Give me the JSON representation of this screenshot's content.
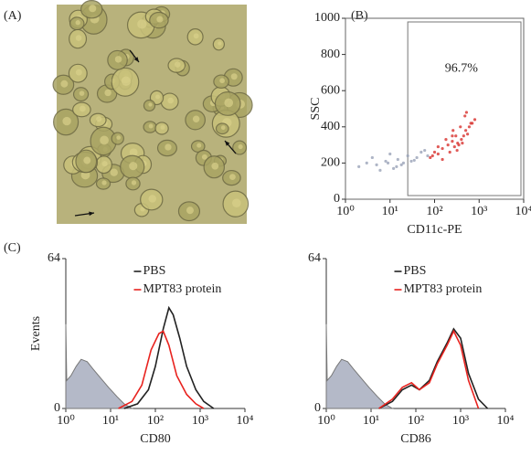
{
  "panel_labels": [
    "(A)",
    "(B)",
    "(C)"
  ],
  "chart_data": [
    {
      "type": "scatter",
      "x_label": "CD11c-PE",
      "y_label": "SSC",
      "annotation": "96.7%",
      "xscale": "log",
      "xlim": [
        1,
        10000
      ],
      "xticks": [
        {
          "value": 1,
          "label": "10⁰"
        },
        {
          "value": 10,
          "label": "10¹"
        },
        {
          "value": 100,
          "label": "10²"
        },
        {
          "value": 1000,
          "label": "10³"
        },
        {
          "value": 10000,
          "label": "10⁴"
        }
      ],
      "ylim": [
        0,
        1000
      ],
      "yticks": [
        0,
        200,
        400,
        600,
        800,
        1000
      ],
      "series": [
        {
          "color": "#9aa3b8",
          "x": [
            2,
            3,
            5,
            4,
            8,
            12,
            15,
            20,
            25,
            30,
            6,
            10,
            18,
            40,
            50,
            70,
            9,
            14,
            35,
            60
          ],
          "y": [
            180,
            200,
            190,
            230,
            210,
            170,
            220,
            200,
            240,
            210,
            160,
            250,
            190,
            230,
            260,
            240,
            200,
            180,
            215,
            270
          ]
        },
        {
          "color": "#d8322e",
          "x": [
            80,
            100,
            120,
            150,
            200,
            250,
            300,
            350,
            400,
            500,
            600,
            700,
            800,
            150,
            220,
            280,
            330,
            450,
            550,
            650,
            180,
            260,
            380,
            480,
            120,
            90,
            320,
            420,
            520,
            250
          ],
          "y": [
            230,
            260,
            250,
            280,
            300,
            320,
            350,
            300,
            330,
            380,
            400,
            420,
            440,
            220,
            260,
            290,
            310,
            350,
            360,
            420,
            330,
            380,
            400,
            460,
            290,
            240,
            270,
            310,
            480,
            350
          ]
        }
      ]
    },
    {
      "type": "line",
      "x_label": "CD80",
      "y_label": "Events",
      "legend": "upper center",
      "xscale": "log",
      "xlim": [
        1,
        10000
      ],
      "xticks": [
        {
          "value": 1,
          "label": "10⁰"
        },
        {
          "value": 10,
          "label": "10¹"
        },
        {
          "value": 100,
          "label": "10²"
        },
        {
          "value": 1000,
          "label": "10³"
        },
        {
          "value": 10000,
          "label": "10⁴"
        }
      ],
      "ylim": [
        0,
        64
      ],
      "yticks": [
        0,
        64
      ],
      "series": [
        {
          "color": "#b4b9c8",
          "fill": true,
          "x": [
            1,
            1.05,
            1.3,
            1.7,
            2.2,
            3,
            4,
            6,
            9,
            14,
            20,
            30
          ],
          "values": [
            36,
            12,
            14,
            18,
            21,
            20,
            17,
            13,
            9,
            5,
            2,
            0
          ]
        },
        {
          "name": "PBS",
          "color": "#222222",
          "x": [
            20,
            40,
            70,
            100,
            150,
            200,
            250,
            350,
            500,
            800,
            1200,
            2000
          ],
          "values": [
            0,
            2,
            8,
            18,
            34,
            43,
            40,
            30,
            18,
            8,
            3,
            0
          ]
        },
        {
          "name": "MPT83 protein",
          "color": "#e8231f",
          "x": [
            15,
            30,
            50,
            80,
            120,
            150,
            200,
            300,
            500,
            800,
            1200
          ],
          "values": [
            0,
            3,
            10,
            25,
            32,
            33,
            27,
            14,
            6,
            2,
            0
          ]
        }
      ]
    },
    {
      "type": "line",
      "x_label": "CD86",
      "y_label": "",
      "legend": "upper center",
      "xscale": "log",
      "xlim": [
        1,
        10000
      ],
      "xticks": [
        {
          "value": 1,
          "label": "10⁰"
        },
        {
          "value": 10,
          "label": "10¹"
        },
        {
          "value": 100,
          "label": "10²"
        },
        {
          "value": 1000,
          "label": "10³"
        },
        {
          "value": 10000,
          "label": "10⁴"
        }
      ],
      "ylim": [
        0,
        64
      ],
      "yticks": [
        0,
        64
      ],
      "series": [
        {
          "color": "#b4b9c8",
          "fill": true,
          "x": [
            1,
            1.05,
            1.3,
            1.7,
            2.2,
            3,
            4,
            6,
            9,
            14,
            20,
            30
          ],
          "values": [
            36,
            12,
            14,
            18,
            21,
            20,
            17,
            13,
            9,
            5,
            2,
            0
          ]
        },
        {
          "name": "PBS",
          "color": "#222222",
          "x": [
            15,
            30,
            50,
            80,
            120,
            200,
            300,
            500,
            700,
            1000,
            1500,
            2500,
            4000
          ],
          "values": [
            0,
            3,
            8,
            10,
            8,
            12,
            20,
            28,
            34,
            30,
            15,
            4,
            0
          ]
        },
        {
          "name": "MPT83 protein",
          "color": "#e8231f",
          "x": [
            15,
            30,
            50,
            80,
            120,
            200,
            300,
            500,
            700,
            1000,
            1500,
            2500
          ],
          "values": [
            0,
            4,
            9,
            11,
            8,
            11,
            19,
            27,
            33,
            27,
            12,
            0
          ]
        }
      ]
    }
  ]
}
